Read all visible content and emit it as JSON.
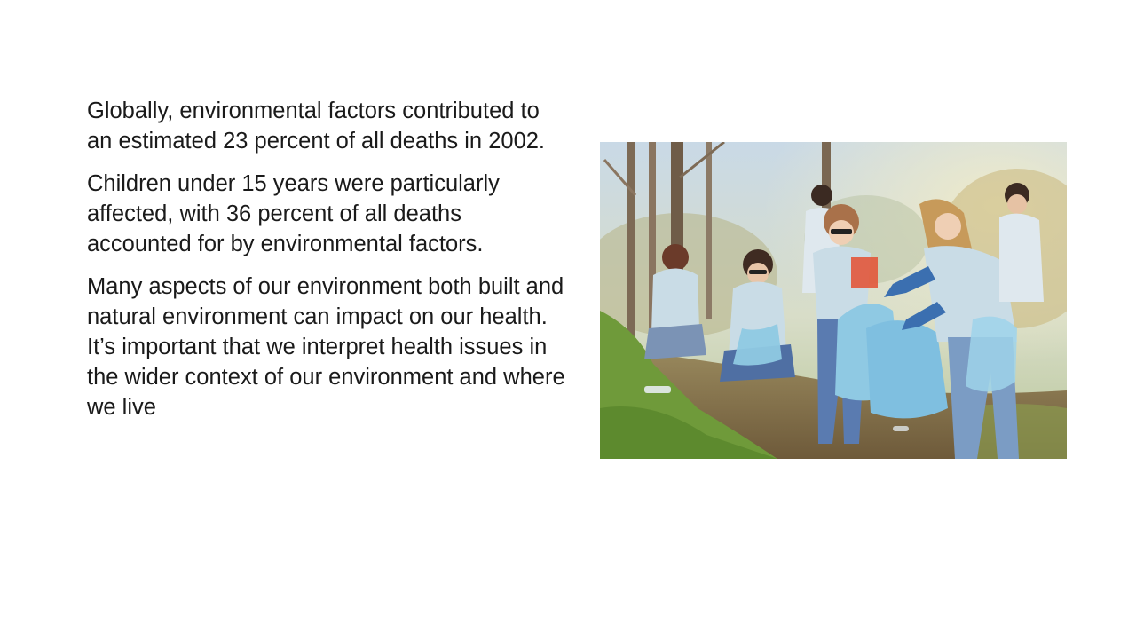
{
  "slide": {
    "paragraphs": [
      "Globally, environmental factors contributed to an estimated 23 percent of all deaths in 2002.",
      "Children under 15 years were particularly affected, with 36 percent of all deaths accounted for by environmental factors.",
      "Many aspects of our environment both built and natural environment can impact on our health. It’s important that we interpret health issues in the wider context of our environment and where we live"
    ]
  },
  "colors": {
    "text": "#1a1a1a",
    "background": "#ffffff",
    "shirt": "#c9dce6",
    "bag": "#8fc9e3",
    "grass": "#6f9a3a"
  }
}
